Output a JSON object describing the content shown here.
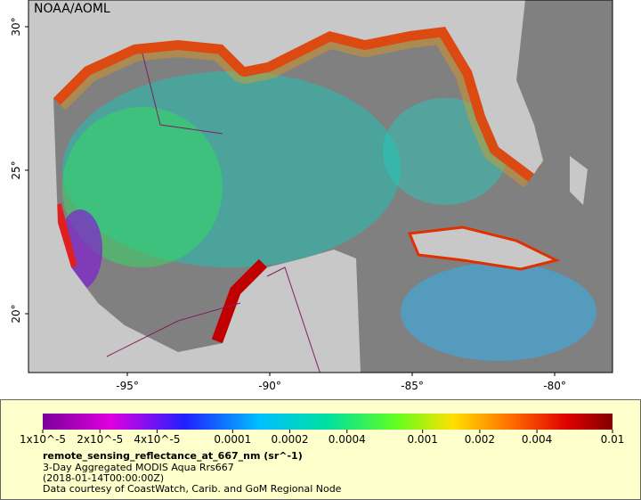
{
  "watermark": "NOAA/AOML",
  "map": {
    "lon_range": [
      -98.47,
      -77.97
    ],
    "lat_range": [
      17.95,
      30.93
    ],
    "lat_ticks": [
      {
        "value": 20,
        "label": "20°"
      },
      {
        "value": 25,
        "label": "25°"
      },
      {
        "value": 30,
        "label": "30°"
      }
    ],
    "lon_ticks": [
      {
        "value": -95,
        "label": "-95°"
      },
      {
        "value": -90,
        "label": "-90°"
      },
      {
        "value": -85,
        "label": "-85°"
      },
      {
        "value": -80,
        "label": "-80°"
      }
    ]
  },
  "colorbar": {
    "scale": "log",
    "range": [
      1e-05,
      0.01
    ],
    "ticks": [
      {
        "value": 1e-05,
        "label": "1x10^-5"
      },
      {
        "value": 2e-05,
        "label": "2x10^-5"
      },
      {
        "value": 4e-05,
        "label": "4x10^-5"
      },
      0.0001,
      0.0002,
      0.0004,
      0.001,
      0.002,
      0.004,
      0.01
    ]
  },
  "legend": {
    "variable": "remote_sensing_reflectance_at_667_nm (sr^-1)",
    "lines": [
      "3-Day Aggregated MODIS Aqua Rrs667",
      "(2018-01-14T00:00:00Z)",
      "Data courtesy of CoastWatch, Carib. and GoM Regional Node"
    ]
  }
}
